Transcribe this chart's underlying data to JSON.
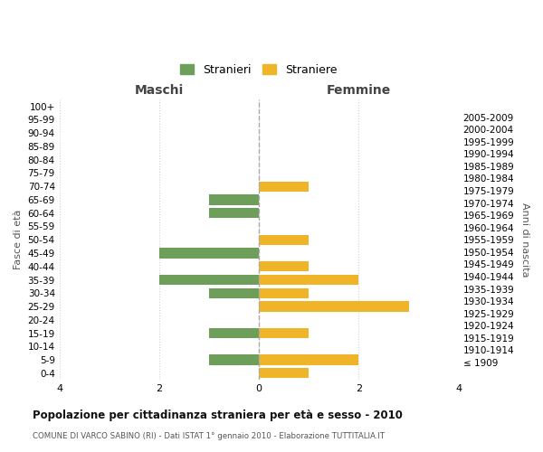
{
  "age_groups": [
    "100+",
    "95-99",
    "90-94",
    "85-89",
    "80-84",
    "75-79",
    "70-74",
    "65-69",
    "60-64",
    "55-59",
    "50-54",
    "45-49",
    "40-44",
    "35-39",
    "30-34",
    "25-29",
    "20-24",
    "15-19",
    "10-14",
    "5-9",
    "0-4"
  ],
  "birth_years": [
    "≤ 1909",
    "1910-1914",
    "1915-1919",
    "1920-1924",
    "1925-1929",
    "1930-1934",
    "1935-1939",
    "1940-1944",
    "1945-1949",
    "1950-1954",
    "1955-1959",
    "1960-1964",
    "1965-1969",
    "1970-1974",
    "1975-1979",
    "1980-1984",
    "1985-1989",
    "1990-1994",
    "1995-1999",
    "2000-2004",
    "2005-2009"
  ],
  "maschi": [
    0,
    0,
    0,
    0,
    0,
    0,
    0,
    1,
    1,
    0,
    0,
    2,
    0,
    2,
    1,
    0,
    0,
    1,
    0,
    1,
    0
  ],
  "femmine": [
    0,
    0,
    0,
    0,
    0,
    0,
    1,
    0,
    0,
    0,
    1,
    0,
    1,
    2,
    1,
    3,
    0,
    1,
    0,
    2,
    1
  ],
  "maschi_color": "#6d9e5a",
  "femmine_color": "#f0b429",
  "bg_color": "#ffffff",
  "grid_color": "#d0d0d0",
  "title": "Popolazione per cittadinanza straniera per età e sesso - 2010",
  "subtitle": "COMUNE DI VARCO SABINO (RI) - Dati ISTAT 1° gennaio 2010 - Elaborazione TUTTITALIA.IT",
  "xlabel_left": "Maschi",
  "xlabel_right": "Femmine",
  "ylabel_left": "Fasce di età",
  "ylabel_right": "Anni di nascita",
  "legend_stranieri": "Stranieri",
  "legend_straniere": "Straniere",
  "xlim": 4,
  "bar_height": 0.75
}
